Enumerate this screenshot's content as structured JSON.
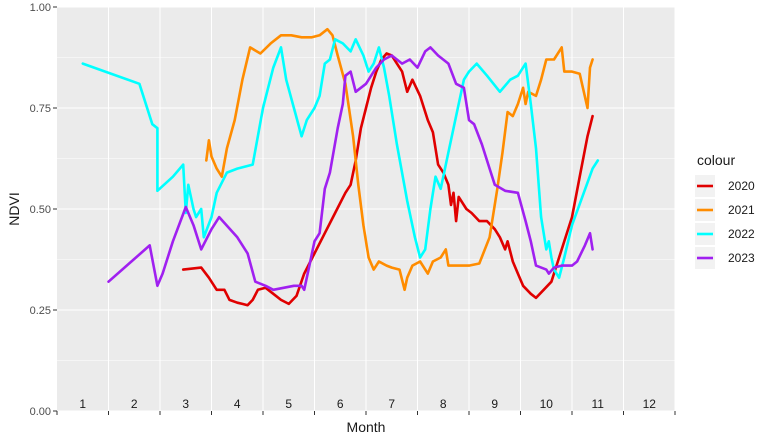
{
  "chart_data": {
    "type": "line",
    "xlabel": "Month",
    "ylabel": "NDVI",
    "ylim": [
      0,
      1
    ],
    "xlim": [
      0.5,
      12.5
    ],
    "y_ticks": [
      "0.00",
      "0.25",
      "0.50",
      "0.75",
      "1.00"
    ],
    "x_tick_labels": [
      "1",
      "2",
      "3",
      "4",
      "5",
      "6",
      "7",
      "8",
      "9",
      "10",
      "11",
      "12"
    ],
    "grid": true,
    "legend": {
      "title": "colour",
      "placement": "right"
    },
    "series": [
      {
        "name": "2020",
        "color": "#e00000",
        "points": [
          [
            2.95,
            0.35
          ],
          [
            3.3,
            0.355
          ],
          [
            3.45,
            0.33
          ],
          [
            3.6,
            0.3
          ],
          [
            3.75,
            0.3
          ],
          [
            3.85,
            0.275
          ],
          [
            4.0,
            0.268
          ],
          [
            4.1,
            0.265
          ],
          [
            4.2,
            0.262
          ],
          [
            4.3,
            0.275
          ],
          [
            4.4,
            0.3
          ],
          [
            4.55,
            0.305
          ],
          [
            4.7,
            0.29
          ],
          [
            4.85,
            0.275
          ],
          [
            5.0,
            0.265
          ],
          [
            5.15,
            0.285
          ],
          [
            5.3,
            0.34
          ],
          [
            5.5,
            0.39
          ],
          [
            5.7,
            0.44
          ],
          [
            5.9,
            0.49
          ],
          [
            6.1,
            0.54
          ],
          [
            6.2,
            0.56
          ],
          [
            6.3,
            0.62
          ],
          [
            6.4,
            0.7
          ],
          [
            6.5,
            0.75
          ],
          [
            6.6,
            0.8
          ],
          [
            6.7,
            0.84
          ],
          [
            6.8,
            0.87
          ],
          [
            6.9,
            0.885
          ],
          [
            7.0,
            0.88
          ],
          [
            7.1,
            0.86
          ],
          [
            7.2,
            0.84
          ],
          [
            7.3,
            0.79
          ],
          [
            7.4,
            0.82
          ],
          [
            7.55,
            0.78
          ],
          [
            7.7,
            0.72
          ],
          [
            7.8,
            0.69
          ],
          [
            7.9,
            0.61
          ],
          [
            8.0,
            0.59
          ],
          [
            8.1,
            0.56
          ],
          [
            8.15,
            0.51
          ],
          [
            8.2,
            0.54
          ],
          [
            8.25,
            0.47
          ],
          [
            8.3,
            0.53
          ],
          [
            8.45,
            0.5
          ],
          [
            8.55,
            0.49
          ],
          [
            8.7,
            0.47
          ],
          [
            8.85,
            0.47
          ],
          [
            9.0,
            0.45
          ],
          [
            9.1,
            0.43
          ],
          [
            9.2,
            0.4
          ],
          [
            9.25,
            0.42
          ],
          [
            9.35,
            0.37
          ],
          [
            9.45,
            0.34
          ],
          [
            9.55,
            0.31
          ],
          [
            9.7,
            0.29
          ],
          [
            9.8,
            0.28
          ],
          [
            9.95,
            0.3
          ],
          [
            10.1,
            0.32
          ],
          [
            10.3,
            0.4
          ],
          [
            10.5,
            0.48
          ],
          [
            10.65,
            0.58
          ],
          [
            10.8,
            0.68
          ],
          [
            10.9,
            0.73
          ]
        ]
      },
      {
        "name": "2021",
        "color": "#ff8c00",
        "points": [
          [
            3.4,
            0.62
          ],
          [
            3.45,
            0.67
          ],
          [
            3.5,
            0.63
          ],
          [
            3.6,
            0.6
          ],
          [
            3.7,
            0.58
          ],
          [
            3.8,
            0.65
          ],
          [
            3.95,
            0.72
          ],
          [
            4.1,
            0.82
          ],
          [
            4.25,
            0.9
          ],
          [
            4.45,
            0.885
          ],
          [
            4.65,
            0.91
          ],
          [
            4.85,
            0.93
          ],
          [
            5.05,
            0.93
          ],
          [
            5.25,
            0.925
          ],
          [
            5.45,
            0.925
          ],
          [
            5.6,
            0.93
          ],
          [
            5.75,
            0.945
          ],
          [
            5.85,
            0.93
          ],
          [
            5.95,
            0.88
          ],
          [
            6.1,
            0.81
          ],
          [
            6.25,
            0.68
          ],
          [
            6.35,
            0.56
          ],
          [
            6.45,
            0.46
          ],
          [
            6.55,
            0.38
          ],
          [
            6.65,
            0.35
          ],
          [
            6.75,
            0.37
          ],
          [
            6.9,
            0.36
          ],
          [
            7.0,
            0.355
          ],
          [
            7.15,
            0.35
          ],
          [
            7.25,
            0.3
          ],
          [
            7.3,
            0.33
          ],
          [
            7.4,
            0.36
          ],
          [
            7.55,
            0.37
          ],
          [
            7.7,
            0.34
          ],
          [
            7.8,
            0.37
          ],
          [
            7.95,
            0.38
          ],
          [
            8.05,
            0.4
          ],
          [
            8.1,
            0.36
          ],
          [
            8.3,
            0.36
          ],
          [
            8.5,
            0.36
          ],
          [
            8.7,
            0.365
          ],
          [
            8.9,
            0.43
          ],
          [
            9.05,
            0.55
          ],
          [
            9.15,
            0.64
          ],
          [
            9.25,
            0.74
          ],
          [
            9.35,
            0.73
          ],
          [
            9.45,
            0.76
          ],
          [
            9.55,
            0.8
          ],
          [
            9.6,
            0.76
          ],
          [
            9.65,
            0.79
          ],
          [
            9.8,
            0.78
          ],
          [
            9.9,
            0.82
          ],
          [
            10.0,
            0.87
          ],
          [
            10.15,
            0.87
          ],
          [
            10.3,
            0.9
          ],
          [
            10.35,
            0.84
          ],
          [
            10.5,
            0.84
          ],
          [
            10.65,
            0.835
          ],
          [
            10.8,
            0.75
          ],
          [
            10.85,
            0.85
          ],
          [
            10.9,
            0.87
          ]
        ]
      },
      {
        "name": "2022",
        "color": "#00ffff",
        "points": [
          [
            1.0,
            0.86
          ],
          [
            2.1,
            0.81
          ],
          [
            2.35,
            0.71
          ],
          [
            2.45,
            0.7
          ],
          [
            2.45,
            0.545
          ],
          [
            2.75,
            0.58
          ],
          [
            2.95,
            0.61
          ],
          [
            3.0,
            0.49
          ],
          [
            3.05,
            0.56
          ],
          [
            3.15,
            0.5
          ],
          [
            3.2,
            0.48
          ],
          [
            3.3,
            0.5
          ],
          [
            3.35,
            0.43
          ],
          [
            3.5,
            0.48
          ],
          [
            3.6,
            0.54
          ],
          [
            3.8,
            0.59
          ],
          [
            4.0,
            0.6
          ],
          [
            4.3,
            0.61
          ],
          [
            4.5,
            0.75
          ],
          [
            4.7,
            0.85
          ],
          [
            4.85,
            0.9
          ],
          [
            4.95,
            0.82
          ],
          [
            5.1,
            0.75
          ],
          [
            5.25,
            0.68
          ],
          [
            5.35,
            0.72
          ],
          [
            5.5,
            0.75
          ],
          [
            5.6,
            0.78
          ],
          [
            5.7,
            0.86
          ],
          [
            5.8,
            0.87
          ],
          [
            5.9,
            0.92
          ],
          [
            6.05,
            0.91
          ],
          [
            6.2,
            0.89
          ],
          [
            6.3,
            0.92
          ],
          [
            6.45,
            0.88
          ],
          [
            6.55,
            0.84
          ],
          [
            6.65,
            0.86
          ],
          [
            6.75,
            0.9
          ],
          [
            6.85,
            0.85
          ],
          [
            6.95,
            0.78
          ],
          [
            7.1,
            0.66
          ],
          [
            7.3,
            0.52
          ],
          [
            7.45,
            0.43
          ],
          [
            7.55,
            0.38
          ],
          [
            7.65,
            0.4
          ],
          [
            7.75,
            0.5
          ],
          [
            7.85,
            0.58
          ],
          [
            7.95,
            0.55
          ],
          [
            8.1,
            0.64
          ],
          [
            8.25,
            0.73
          ],
          [
            8.4,
            0.82
          ],
          [
            8.5,
            0.84
          ],
          [
            8.65,
            0.86
          ],
          [
            8.85,
            0.83
          ],
          [
            9.1,
            0.79
          ],
          [
            9.3,
            0.82
          ],
          [
            9.45,
            0.83
          ],
          [
            9.6,
            0.86
          ],
          [
            9.7,
            0.76
          ],
          [
            9.8,
            0.65
          ],
          [
            9.9,
            0.48
          ],
          [
            10.0,
            0.4
          ],
          [
            10.05,
            0.42
          ],
          [
            10.1,
            0.38
          ],
          [
            10.15,
            0.35
          ],
          [
            10.25,
            0.33
          ],
          [
            10.35,
            0.38
          ],
          [
            10.5,
            0.46
          ],
          [
            10.7,
            0.53
          ],
          [
            10.9,
            0.6
          ],
          [
            11.0,
            0.62
          ]
        ]
      },
      {
        "name": "2023",
        "color": "#a020f0",
        "points": [
          [
            1.5,
            0.32
          ],
          [
            2.3,
            0.41
          ],
          [
            2.45,
            0.31
          ],
          [
            2.55,
            0.34
          ],
          [
            2.75,
            0.42
          ],
          [
            3.0,
            0.505
          ],
          [
            3.15,
            0.46
          ],
          [
            3.3,
            0.4
          ],
          [
            3.5,
            0.45
          ],
          [
            3.65,
            0.48
          ],
          [
            4.0,
            0.43
          ],
          [
            4.2,
            0.39
          ],
          [
            4.35,
            0.32
          ],
          [
            4.55,
            0.31
          ],
          [
            4.7,
            0.3
          ],
          [
            5.1,
            0.31
          ],
          [
            5.25,
            0.31
          ],
          [
            5.3,
            0.3
          ],
          [
            5.4,
            0.36
          ],
          [
            5.5,
            0.42
          ],
          [
            5.6,
            0.44
          ],
          [
            5.7,
            0.55
          ],
          [
            5.8,
            0.59
          ],
          [
            5.95,
            0.7
          ],
          [
            6.05,
            0.76
          ],
          [
            6.1,
            0.83
          ],
          [
            6.2,
            0.84
          ],
          [
            6.3,
            0.79
          ],
          [
            6.5,
            0.81
          ],
          [
            6.7,
            0.85
          ],
          [
            6.85,
            0.87
          ],
          [
            7.0,
            0.88
          ],
          [
            7.2,
            0.86
          ],
          [
            7.35,
            0.87
          ],
          [
            7.5,
            0.85
          ],
          [
            7.65,
            0.89
          ],
          [
            7.75,
            0.9
          ],
          [
            7.9,
            0.88
          ],
          [
            8.1,
            0.86
          ],
          [
            8.25,
            0.81
          ],
          [
            8.4,
            0.8
          ],
          [
            8.5,
            0.72
          ],
          [
            8.6,
            0.71
          ],
          [
            8.75,
            0.66
          ],
          [
            8.9,
            0.6
          ],
          [
            9.0,
            0.56
          ],
          [
            9.2,
            0.545
          ],
          [
            9.45,
            0.54
          ],
          [
            9.6,
            0.47
          ],
          [
            9.7,
            0.42
          ],
          [
            9.8,
            0.36
          ],
          [
            10.0,
            0.35
          ],
          [
            10.05,
            0.34
          ],
          [
            10.15,
            0.355
          ],
          [
            10.3,
            0.36
          ],
          [
            10.5,
            0.36
          ],
          [
            10.6,
            0.37
          ],
          [
            10.75,
            0.41
          ],
          [
            10.85,
            0.44
          ],
          [
            10.9,
            0.4
          ]
        ]
      }
    ]
  }
}
